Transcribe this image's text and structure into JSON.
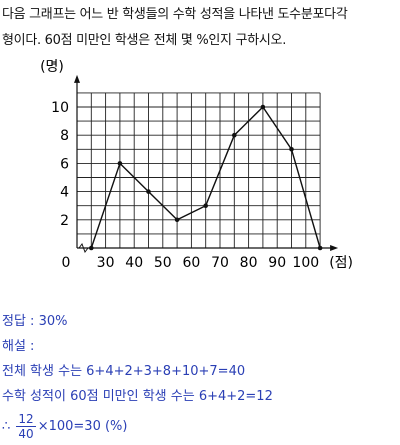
{
  "question": {
    "line1": "다음 그래프는 어느 반 학생들의 수학 성적을 나타낸 도수분포다각",
    "line2": "형이다. 60점 미만인 학생은 전체 몇 %인지 구하시오."
  },
  "chart_data": {
    "type": "line",
    "title": "",
    "xlabel": "(점)",
    "ylabel": "(명)",
    "x_ticks": [
      "0",
      "30",
      "40",
      "50",
      "60",
      "70",
      "80",
      "90",
      "100"
    ],
    "y_ticks": [
      "2",
      "4",
      "6",
      "8",
      "10"
    ],
    "xlim": [
      20,
      105
    ],
    "ylim": [
      0,
      11
    ],
    "grid": true,
    "x": [
      25,
      35,
      45,
      55,
      65,
      75,
      85,
      95,
      105
    ],
    "values": [
      0,
      6,
      4,
      2,
      3,
      8,
      10,
      7,
      0
    ]
  },
  "answer": {
    "label": "정답 : ",
    "value": "30%"
  },
  "solution": {
    "label": "해설 :",
    "line1": "전체 학생 수는 6+4+2+3+8+10+7=40",
    "line2": "수학 성적이 60점 미만인 학생 수는 6+4+2=12",
    "line3_prefix": "∴",
    "frac_num": "12",
    "frac_den": "40",
    "line3_suffix": "×100=30 (%)"
  },
  "colors": {
    "answer_text": "#2a3fb5",
    "line": "#111111",
    "grid": "#222222"
  }
}
